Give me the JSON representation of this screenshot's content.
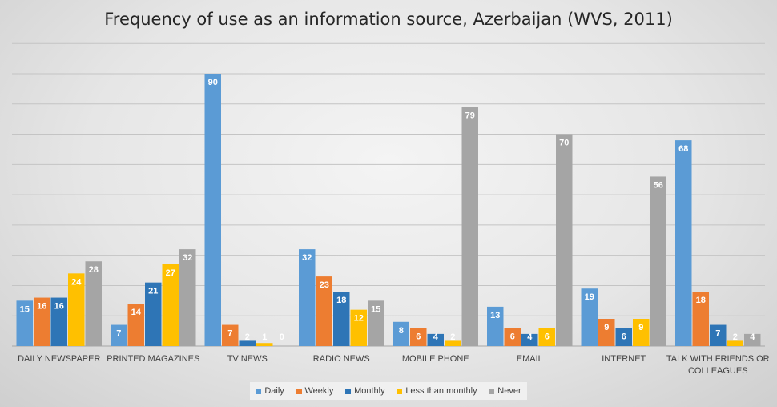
{
  "chart_data": {
    "type": "bar",
    "title": "Frequency of use as an information source, Azerbaijan (WVS, 2011)",
    "xlabel": "",
    "ylabel": "",
    "ylim": [
      0,
      90
    ],
    "grid": true,
    "legend_position": "bottom",
    "categories": [
      "DAILY NEWSPAPER",
      "PRINTED MAGAZINES",
      "TV NEWS",
      "RADIO NEWS",
      "MOBILE PHONE",
      "EMAIL",
      "INTERNET",
      "TALK WITH FRIENDS OR COLLEAGUES"
    ],
    "series": [
      {
        "name": "Daily",
        "color": "#5b9bd5",
        "values": [
          15,
          7,
          90,
          32,
          8,
          13,
          19,
          68
        ]
      },
      {
        "name": "Weekly",
        "color": "#ed7d31",
        "values": [
          16,
          14,
          7,
          23,
          6,
          6,
          9,
          18
        ]
      },
      {
        "name": "Monthly",
        "color": "#2e75b6",
        "values": [
          16,
          21,
          2,
          18,
          4,
          4,
          6,
          7
        ]
      },
      {
        "name": "Less than monthly",
        "color": "#ffc000",
        "values": [
          24,
          27,
          1,
          12,
          2,
          6,
          9,
          2
        ]
      },
      {
        "name": "Never",
        "color": "#a5a5a5",
        "values": [
          28,
          32,
          0,
          15,
          79,
          70,
          56,
          4
        ]
      }
    ]
  }
}
